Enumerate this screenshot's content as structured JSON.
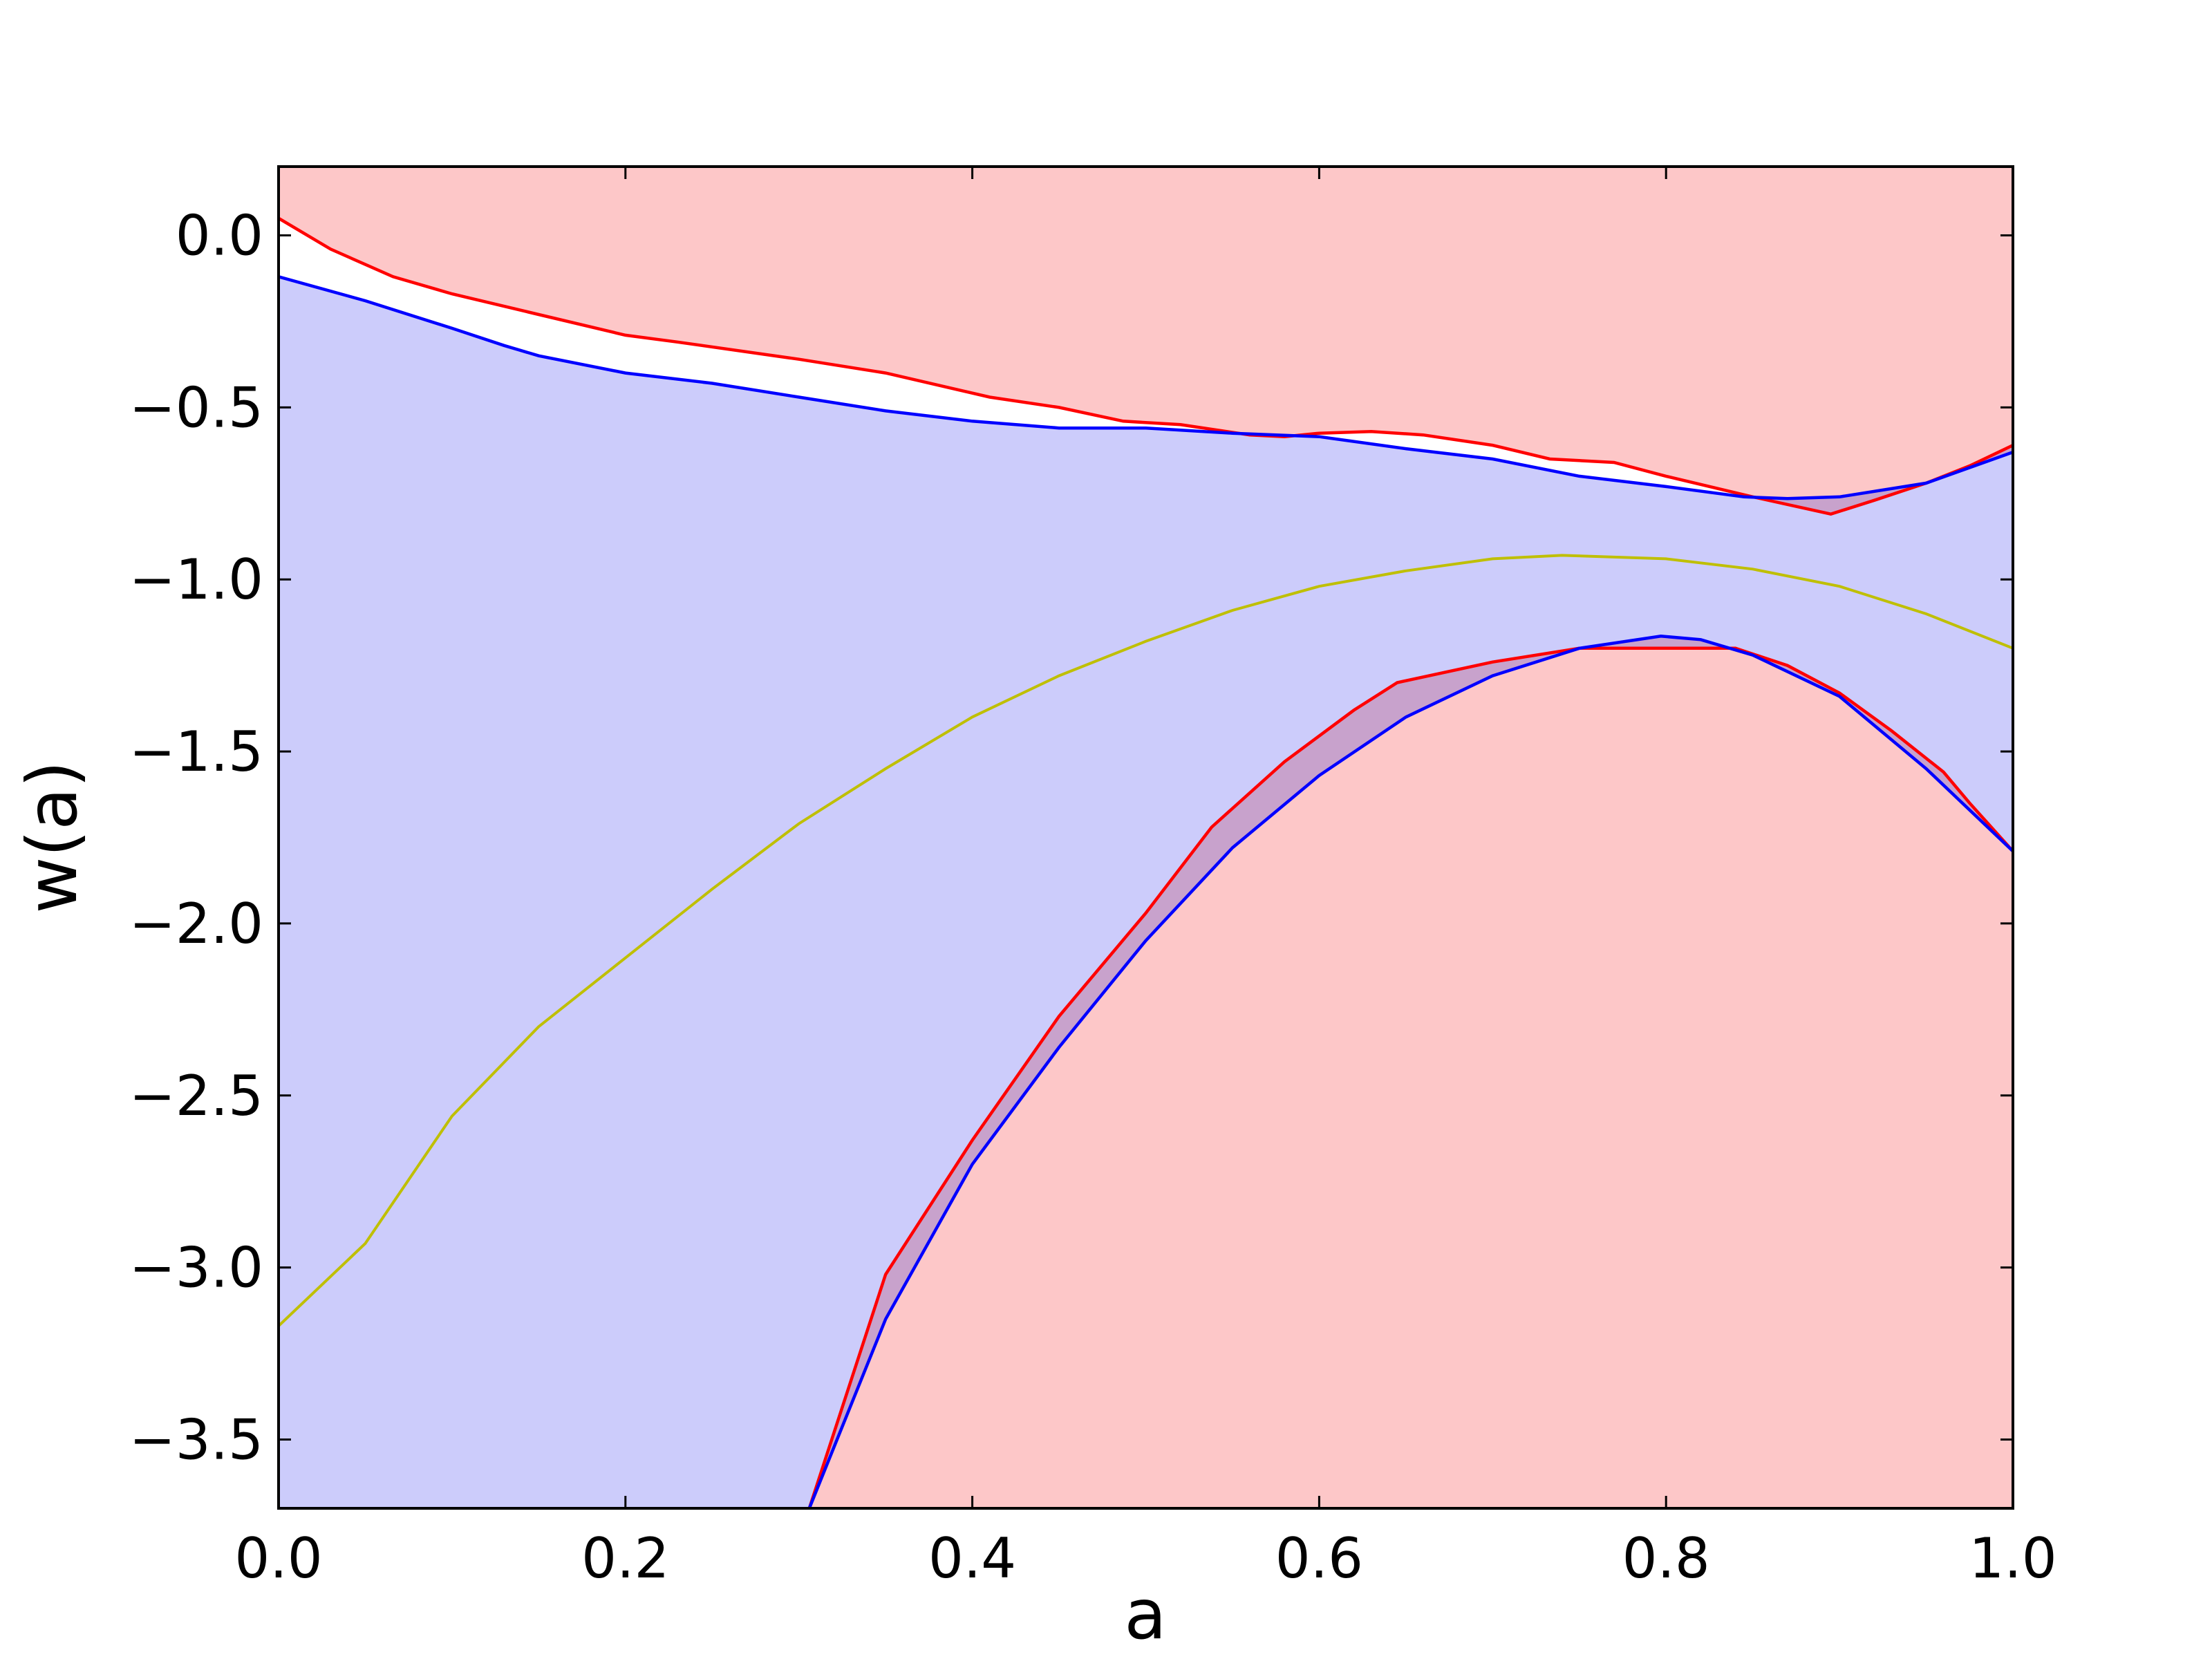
{
  "chart_data": {
    "type": "area",
    "title": "",
    "xlabel": "a",
    "ylabel": "w(a)",
    "xlim": [
      0.0,
      1.0
    ],
    "ylim": [
      -3.7,
      0.2
    ],
    "x_ticks": [
      0.0,
      0.2,
      0.4,
      0.6,
      0.8,
      1.0
    ],
    "x_tick_labels": [
      "0.0",
      "0.2",
      "0.4",
      "0.6",
      "0.8",
      "1.0"
    ],
    "y_ticks": [
      0.0,
      -0.5,
      -1.0,
      -1.5,
      -2.0,
      -2.5,
      -3.0,
      -3.5
    ],
    "y_tick_labels": [
      "0.0",
      "−0.5",
      "−1.0",
      "−1.5",
      "−2.0",
      "−2.5",
      "−3.0",
      "−3.5"
    ],
    "grid": false,
    "legend": "none",
    "colors": {
      "red_fill": "#fdc7c8",
      "blue_fill": "#c7c7fb",
      "overlap_fill": "#c8a2cc",
      "red_line": "#ff0000",
      "blue_line": "#0000ff",
      "yellow_line": "#bfbf00",
      "axes": "#000000",
      "background": "#ffffff"
    },
    "series": [
      {
        "color": "red",
        "upper": {
          "x": [
            0.0,
            0.03,
            0.066,
            0.1,
            0.15,
            0.2,
            0.23,
            0.3,
            0.35,
            0.41,
            0.45,
            0.487,
            0.52,
            0.56,
            0.58,
            0.6,
            0.63,
            0.66,
            0.7,
            0.733,
            0.77,
            0.8,
            0.85,
            0.895,
            0.92,
            0.95,
            0.975,
            1.0
          ],
          "y": [
            0.05,
            -0.04,
            -0.12,
            -0.17,
            -0.23,
            -0.29,
            -0.31,
            -0.36,
            -0.4,
            -0.47,
            -0.5,
            -0.54,
            -0.55,
            -0.58,
            -0.585,
            -0.575,
            -0.57,
            -0.58,
            -0.61,
            -0.65,
            -0.66,
            -0.7,
            -0.76,
            -0.81,
            -0.77,
            -0.72,
            -0.67,
            -0.61
          ]
        },
        "lower": {
          "x": [
            0.306,
            0.35,
            0.4,
            0.45,
            0.5,
            0.538,
            0.58,
            0.62,
            0.645,
            0.7,
            0.75,
            0.8,
            0.84,
            0.87,
            0.9,
            0.93,
            0.96,
            0.975,
            1.0
          ],
          "y": [
            -3.7,
            -3.02,
            -2.63,
            -2.27,
            -1.97,
            -1.72,
            -1.53,
            -1.38,
            -1.3,
            -1.24,
            -1.2,
            -1.2,
            -1.2,
            -1.25,
            -1.33,
            -1.44,
            -1.56,
            -1.65,
            -1.79
          ]
        }
      },
      {
        "color": "blue",
        "upper": {
          "x": [
            0.0,
            0.05,
            0.1,
            0.13,
            0.15,
            0.2,
            0.25,
            0.3,
            0.35,
            0.4,
            0.45,
            0.5,
            0.55,
            0.6,
            0.65,
            0.7,
            0.75,
            0.8,
            0.845,
            0.87,
            0.9,
            0.95,
            1.0
          ],
          "y": [
            -0.12,
            -0.19,
            -0.27,
            -0.32,
            -0.35,
            -0.4,
            -0.43,
            -0.47,
            -0.51,
            -0.54,
            -0.56,
            -0.56,
            -0.575,
            -0.585,
            -0.62,
            -0.65,
            -0.7,
            -0.73,
            -0.76,
            -0.765,
            -0.76,
            -0.72,
            -0.63
          ]
        },
        "lower": {
          "x": [
            0.306,
            0.35,
            0.4,
            0.45,
            0.5,
            0.55,
            0.6,
            0.65,
            0.7,
            0.75,
            0.797,
            0.82,
            0.85,
            0.9,
            0.95,
            1.0
          ],
          "y": [
            -3.7,
            -3.15,
            -2.7,
            -2.36,
            -2.05,
            -1.78,
            -1.57,
            -1.4,
            -1.28,
            -1.2,
            -1.165,
            -1.175,
            -1.22,
            -1.34,
            -1.55,
            -1.79
          ]
        }
      },
      {
        "color": "yellow",
        "line": {
          "x": [
            0.0,
            0.05,
            0.1,
            0.15,
            0.2,
            0.25,
            0.3,
            0.35,
            0.4,
            0.45,
            0.5,
            0.55,
            0.6,
            0.65,
            0.7,
            0.74,
            0.8,
            0.85,
            0.9,
            0.95,
            1.0
          ],
          "y": [
            -3.17,
            -2.93,
            -2.56,
            -2.3,
            -2.1,
            -1.9,
            -1.71,
            -1.55,
            -1.4,
            -1.28,
            -1.18,
            -1.09,
            -1.02,
            -0.975,
            -0.94,
            -0.93,
            -0.94,
            -0.97,
            -1.02,
            -1.1,
            -1.2
          ]
        }
      }
    ]
  }
}
